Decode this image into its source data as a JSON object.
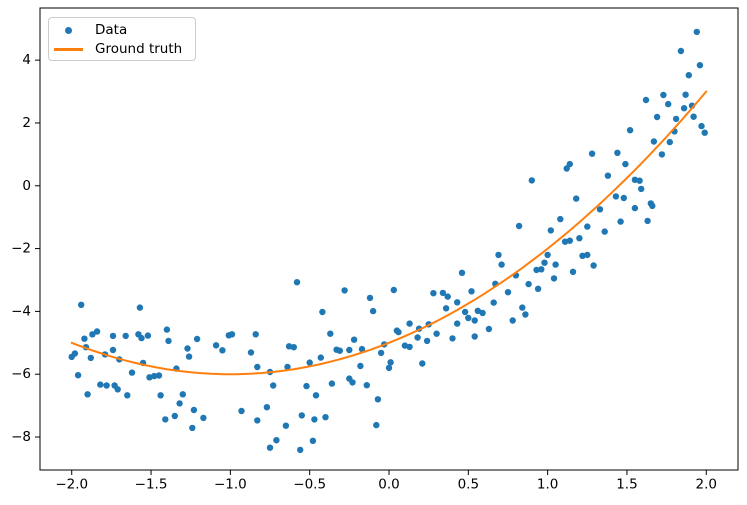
{
  "chart_data": {
    "type": "scatter",
    "title": "",
    "xlabel": "",
    "ylabel": "",
    "grid": false,
    "legend_position": "upper left",
    "xlim": [
      -2.2,
      2.2
    ],
    "ylim": [
      -9.05,
      5.66
    ],
    "x_ticks": [
      -2.0,
      -1.5,
      -1.0,
      -0.5,
      0.0,
      0.5,
      1.0,
      1.5,
      2.0
    ],
    "x_tick_labels": [
      "−2.0",
      "−1.5",
      "−1.0",
      "−0.5",
      "0.0",
      "0.5",
      "1.0",
      "1.5",
      "2.0"
    ],
    "y_ticks": [
      -8,
      -6,
      -4,
      -2,
      0,
      2,
      4
    ],
    "y_tick_labels": [
      "−8",
      "−6",
      "−4",
      "−2",
      "0",
      "2",
      "4"
    ],
    "series": [
      {
        "name": "Data",
        "type": "scatter",
        "color": "#1f77b4",
        "marker_radius": 3.2,
        "points": [
          [
            1.94,
            4.9
          ],
          [
            1.84,
            4.29
          ],
          [
            1.96,
            3.84
          ],
          [
            1.89,
            3.52
          ],
          [
            1.87,
            2.9
          ],
          [
            1.73,
            2.89
          ],
          [
            1.62,
            2.73
          ],
          [
            1.76,
            2.6
          ],
          [
            1.86,
            2.47
          ],
          [
            1.91,
            2.55
          ],
          [
            1.69,
            2.19
          ],
          [
            1.81,
            2.13
          ],
          [
            1.92,
            2.2
          ],
          [
            1.97,
            1.9
          ],
          [
            1.8,
            1.73
          ],
          [
            1.99,
            1.69
          ],
          [
            1.52,
            1.77
          ],
          [
            1.67,
            1.41
          ],
          [
            1.77,
            1.39
          ],
          [
            1.28,
            1.02
          ],
          [
            1.44,
            1.05
          ],
          [
            1.72,
            1.0
          ],
          [
            1.14,
            0.69
          ],
          [
            1.49,
            0.69
          ],
          [
            -1.94,
            -3.79
          ],
          [
            -1.57,
            -3.88
          ],
          [
            -0.58,
            -3.07
          ],
          [
            -0.28,
            -3.33
          ],
          [
            -0.12,
            -3.57
          ],
          [
            -0.42,
            -4.02
          ],
          [
            -0.1,
            -3.99
          ],
          [
            0.03,
            -3.32
          ],
          [
            0.28,
            -3.42
          ],
          [
            0.34,
            -3.41
          ],
          [
            0.37,
            -3.53
          ],
          [
            0.46,
            -2.77
          ],
          [
            0.52,
            -3.36
          ],
          [
            0.43,
            -3.71
          ],
          [
            0.36,
            -3.9
          ],
          [
            0.48,
            -4.02
          ],
          [
            0.56,
            -3.98
          ],
          [
            0.59,
            -4.05
          ],
          [
            0.67,
            -3.12
          ],
          [
            0.69,
            -2.2
          ],
          [
            0.71,
            -2.51
          ],
          [
            0.75,
            -3.39
          ],
          [
            0.66,
            -3.72
          ],
          [
            0.5,
            -4.21
          ],
          [
            0.9,
            0.17
          ],
          [
            1.12,
            0.55
          ],
          [
            1.38,
            0.32
          ],
          [
            1.55,
            0.19
          ],
          [
            1.58,
            0.16
          ],
          [
            1.59,
            -0.1
          ],
          [
            1.18,
            -0.41
          ],
          [
            1.43,
            -0.34
          ],
          [
            1.48,
            -0.39
          ],
          [
            1.65,
            -0.56
          ],
          [
            1.33,
            -0.75
          ],
          [
            1.55,
            -0.71
          ],
          [
            1.66,
            -0.64
          ],
          [
            1.08,
            -1.06
          ],
          [
            1.46,
            -1.14
          ],
          [
            1.63,
            -1.12
          ],
          [
            0.82,
            -1.28
          ],
          [
            1.02,
            -1.42
          ],
          [
            1.25,
            -1.3
          ],
          [
            1.36,
            -1.46
          ],
          [
            1.11,
            -1.78
          ],
          [
            1.14,
            -1.75
          ],
          [
            1.2,
            -1.67
          ],
          [
            1.0,
            -2.2
          ],
          [
            1.22,
            -2.23
          ],
          [
            1.25,
            -2.2
          ],
          [
            0.98,
            -2.45
          ],
          [
            1.05,
            -2.51
          ],
          [
            0.93,
            -2.68
          ],
          [
            0.96,
            -2.66
          ],
          [
            1.16,
            -2.74
          ],
          [
            1.29,
            -2.54
          ],
          [
            0.8,
            -2.85
          ],
          [
            1.04,
            -2.95
          ],
          [
            0.88,
            -3.13
          ],
          [
            0.94,
            -3.28
          ],
          [
            0.84,
            -3.88
          ],
          [
            0.86,
            -4.1
          ],
          [
            -1.92,
            -4.87
          ],
          [
            -1.87,
            -4.73
          ],
          [
            -1.84,
            -4.64
          ],
          [
            -1.74,
            -4.78
          ],
          [
            -1.66,
            -4.78
          ],
          [
            -1.58,
            -4.73
          ],
          [
            -1.56,
            -4.85
          ],
          [
            -1.52,
            -4.77
          ],
          [
            -1.4,
            -4.58
          ],
          [
            -1.39,
            -4.94
          ],
          [
            -1.27,
            -5.18
          ],
          [
            -1.26,
            -5.44
          ],
          [
            -1.21,
            -4.88
          ],
          [
            -1.09,
            -5.08
          ],
          [
            -1.05,
            -5.24
          ],
          [
            -1.01,
            -4.76
          ],
          [
            -0.99,
            -4.73
          ],
          [
            -0.84,
            -4.73
          ],
          [
            -0.87,
            -5.31
          ],
          [
            -0.83,
            -5.77
          ],
          [
            -0.75,
            -5.93
          ],
          [
            -2.0,
            -5.45
          ],
          [
            -1.98,
            -5.34
          ],
          [
            -1.91,
            -5.14
          ],
          [
            -1.88,
            -5.48
          ],
          [
            -1.79,
            -5.37
          ],
          [
            -1.74,
            -5.23
          ],
          [
            -1.7,
            -5.53
          ],
          [
            -1.55,
            -5.64
          ],
          [
            -1.62,
            -5.95
          ],
          [
            -1.96,
            -6.03
          ],
          [
            -1.51,
            -6.1
          ],
          [
            -1.48,
            -6.06
          ],
          [
            -1.45,
            -6.04
          ],
          [
            -1.34,
            -5.82
          ],
          [
            -1.82,
            -6.33
          ],
          [
            -1.78,
            -6.36
          ],
          [
            -1.73,
            -6.36
          ],
          [
            -1.71,
            -6.48
          ],
          [
            -1.65,
            -6.67
          ],
          [
            -1.9,
            -6.64
          ],
          [
            -1.44,
            -6.67
          ],
          [
            -1.3,
            -6.64
          ],
          [
            -1.32,
            -6.93
          ],
          [
            -1.23,
            -7.14
          ],
          [
            -1.17,
            -7.39
          ],
          [
            -1.41,
            -7.44
          ],
          [
            -1.35,
            -7.33
          ],
          [
            -1.24,
            -7.71
          ],
          [
            -0.77,
            -7.05
          ],
          [
            -0.93,
            -7.17
          ],
          [
            -0.83,
            -7.47
          ],
          [
            -0.75,
            -8.34
          ],
          [
            -0.73,
            -6.36
          ],
          [
            -0.37,
            -4.71
          ],
          [
            -0.63,
            -5.11
          ],
          [
            -0.6,
            -5.14
          ],
          [
            -0.33,
            -5.22
          ],
          [
            -0.31,
            -5.25
          ],
          [
            -0.25,
            -5.23
          ],
          [
            -0.22,
            -4.9
          ],
          [
            -0.17,
            -5.2
          ],
          [
            -0.5,
            -5.63
          ],
          [
            -0.43,
            -5.47
          ],
          [
            -0.64,
            -5.77
          ],
          [
            -0.52,
            -6.38
          ],
          [
            -0.46,
            -6.67
          ],
          [
            -0.36,
            -6.3
          ],
          [
            -0.18,
            -5.74
          ],
          [
            -0.25,
            -6.14
          ],
          [
            -0.23,
            -6.26
          ],
          [
            -0.14,
            -6.35
          ],
          [
            -0.07,
            -6.8
          ],
          [
            -0.03,
            -5.05
          ],
          [
            -0.05,
            -5.32
          ],
          [
            0.01,
            -5.62
          ],
          [
            0.0,
            -5.8
          ],
          [
            0.05,
            -4.61
          ],
          [
            0.06,
            -4.66
          ],
          [
            0.1,
            -5.09
          ],
          [
            0.13,
            -5.13
          ],
          [
            0.13,
            -4.39
          ],
          [
            0.18,
            -4.83
          ],
          [
            0.19,
            -4.55
          ],
          [
            0.24,
            -4.94
          ],
          [
            0.25,
            -4.41
          ],
          [
            0.3,
            -4.71
          ],
          [
            0.21,
            -5.66
          ],
          [
            0.4,
            -4.86
          ],
          [
            0.43,
            -4.39
          ],
          [
            0.54,
            -4.29
          ],
          [
            0.63,
            -4.56
          ],
          [
            0.54,
            -4.8
          ],
          [
            -0.55,
            -7.31
          ],
          [
            -0.47,
            -7.44
          ],
          [
            -0.4,
            -7.37
          ],
          [
            -0.65,
            -7.64
          ],
          [
            -0.71,
            -8.1
          ],
          [
            -0.48,
            -8.12
          ],
          [
            -0.56,
            -8.41
          ],
          [
            -0.08,
            -7.62
          ],
          [
            0.78,
            -4.29
          ]
        ]
      },
      {
        "name": "Ground truth",
        "type": "line",
        "color": "#ff7f0e",
        "line_width": 2,
        "formula": "y = x^2 + 2x - 5",
        "coeffs": {
          "a": 1,
          "b": 2,
          "c": -5
        },
        "x_range": [
          -2,
          2
        ],
        "points": [
          [
            -2.0,
            -5.0
          ],
          [
            -1.75,
            -5.44
          ],
          [
            -1.5,
            -5.75
          ],
          [
            -1.25,
            -5.94
          ],
          [
            -1.0,
            -6.0
          ],
          [
            -0.75,
            -5.94
          ],
          [
            -0.5,
            -5.75
          ],
          [
            -0.25,
            -5.44
          ],
          [
            0.0,
            -5.0
          ],
          [
            0.25,
            -4.44
          ],
          [
            0.5,
            -3.75
          ],
          [
            0.75,
            -2.94
          ],
          [
            1.0,
            -2.0
          ],
          [
            1.25,
            -0.94
          ],
          [
            1.5,
            0.25
          ],
          [
            1.75,
            1.56
          ],
          [
            2.0,
            3.0
          ]
        ]
      }
    ],
    "axis_color": "#000000",
    "background_color": "#ffffff"
  },
  "legend": {
    "items": [
      {
        "label": "Data",
        "marker": "dot"
      },
      {
        "label": "Ground truth",
        "marker": "line"
      }
    ]
  }
}
